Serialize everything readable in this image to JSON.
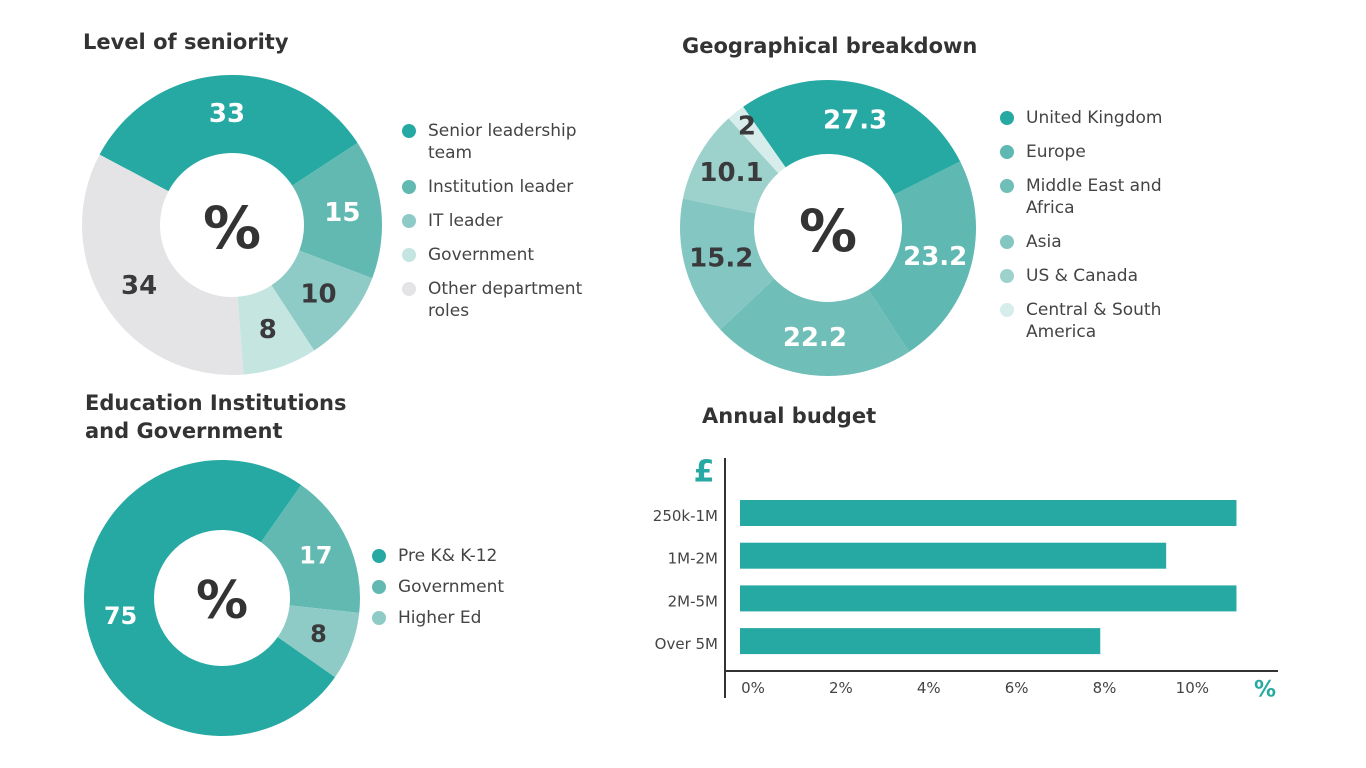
{
  "chart_data": [
    {
      "type": "donut",
      "title": "Level of seniority",
      "center_label": "%",
      "categories": [
        "Senior leadership team",
        "Institution leader",
        "IT leader",
        "Government",
        "Other department roles"
      ],
      "values": [
        33,
        15,
        10,
        8,
        34
      ],
      "colors": [
        "#27a9a3",
        "#61b9b2",
        "#8ecbc6",
        "#c5e5e1",
        "#e4e4e6"
      ]
    },
    {
      "type": "donut",
      "title": "Geographical breakdown",
      "center_label": "%",
      "categories": [
        "United Kingdom",
        "Europe",
        "Middle East and Africa",
        "Asia",
        "US & Canada",
        "Central & South America"
      ],
      "values": [
        27.3,
        23.2,
        22.2,
        15.2,
        10.1,
        2
      ],
      "colors": [
        "#27a9a3",
        "#5fb8b1",
        "#6fbeb8",
        "#84c6c1",
        "#9cd1cc",
        "#d6edeb"
      ]
    },
    {
      "type": "donut",
      "title": "Education Institutions and Government",
      "center_label": "%",
      "categories": [
        "Pre K& K-12",
        "Government",
        "Higher Ed"
      ],
      "values": [
        75,
        17,
        8
      ],
      "colors": [
        "#27a9a3",
        "#61b9b2",
        "#8ecbc6"
      ]
    },
    {
      "type": "bar",
      "orientation": "horizontal",
      "title": "Annual budget",
      "y_label": "£",
      "x_label": "%",
      "categories": [
        "250k-1M",
        "1M-2M",
        "2M-5M",
        "Over 5M"
      ],
      "values": [
        11.3,
        9.7,
        11.3,
        8.2
      ],
      "color": "#27a9a3",
      "xlim": [
        0,
        12.2
      ],
      "xticks": [
        {
          "value": 0,
          "label": "0%"
        },
        {
          "value": 2,
          "label": "2%"
        },
        {
          "value": 4,
          "label": "4%"
        },
        {
          "value": 6,
          "label": "6%"
        },
        {
          "value": 8,
          "label": "8%"
        },
        {
          "value": 10,
          "label": "10%"
        }
      ]
    }
  ]
}
